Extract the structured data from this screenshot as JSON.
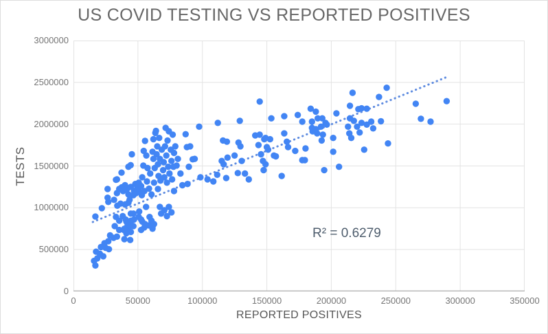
{
  "chart_data": {
    "type": "scatter",
    "title": "US COVID TESTING VS REPORTED POSITIVES",
    "xlabel": "REPORTED POSITIVES",
    "ylabel": "TESTS",
    "xlim": [
      0,
      350000
    ],
    "ylim": [
      0,
      3000000
    ],
    "x_ticks": [
      0,
      50000,
      100000,
      150000,
      200000,
      250000,
      300000,
      350000
    ],
    "y_ticks": [
      0,
      500000,
      1000000,
      1500000,
      2000000,
      2500000,
      3000000
    ],
    "grid": true,
    "legend_position": "none",
    "colors": {
      "point": "#4285f4",
      "trendline": "#5f8ce0",
      "gridline": "#e3e3e3",
      "axis_line": "#ababab",
      "tick_label": "#757575",
      "axis_title": "#555555",
      "title": "#666666",
      "r2_text": "#4e5d6d"
    },
    "point_radius": 4.7,
    "trendline": {
      "style": "dotted",
      "x1": 15000,
      "y1": 830000,
      "x2": 289500,
      "y2": 2563000,
      "r_squared_label": "R² = 0.6279",
      "label_position": {
        "x": 212000,
        "y": 690000
      }
    },
    "series": [
      {
        "name": "TESTS",
        "points": [
          [
            22000,
            995000
          ],
          [
            17000,
            895000
          ],
          [
            34000,
            1025000
          ],
          [
            36500,
            1050000
          ],
          [
            40000,
            1040000
          ],
          [
            42600,
            1060000
          ],
          [
            33000,
            890000
          ],
          [
            35500,
            845000
          ],
          [
            38200,
            900000
          ],
          [
            41000,
            835000
          ],
          [
            44500,
            930000
          ],
          [
            32000,
            780000
          ],
          [
            35500,
            735000
          ],
          [
            39000,
            735000
          ],
          [
            42600,
            750000
          ],
          [
            45300,
            790000
          ],
          [
            47000,
            860000
          ],
          [
            50600,
            890000
          ],
          [
            53300,
            835000
          ],
          [
            55000,
            765000
          ],
          [
            58600,
            790000
          ],
          [
            61300,
            750000
          ],
          [
            28400,
            670000
          ],
          [
            31100,
            640000
          ],
          [
            33700,
            655000
          ],
          [
            27000,
            600000
          ],
          [
            24000,
            575000
          ],
          [
            21300,
            530000
          ],
          [
            25000,
            520000
          ],
          [
            27500,
            505000
          ],
          [
            17500,
            475000
          ],
          [
            20500,
            450000
          ],
          [
            23100,
            420000
          ],
          [
            18500,
            395000
          ],
          [
            16000,
            365000
          ],
          [
            17000,
            310000
          ],
          [
            46500,
            930000
          ],
          [
            40500,
            860000
          ],
          [
            44500,
            845000
          ],
          [
            42000,
            790000
          ],
          [
            46500,
            780000
          ],
          [
            51000,
            955000
          ],
          [
            56300,
            1010000
          ],
          [
            52500,
            860000
          ],
          [
            55500,
            805000
          ],
          [
            59000,
            890000
          ],
          [
            60500,
            845000
          ],
          [
            62500,
            805000
          ],
          [
            61500,
            780000
          ],
          [
            67000,
            1010000
          ],
          [
            68000,
            930000
          ],
          [
            70500,
            970000
          ],
          [
            72500,
            900000
          ],
          [
            74000,
            1010000
          ],
          [
            76000,
            945000
          ],
          [
            39500,
            750000
          ],
          [
            41000,
            695000
          ],
          [
            44500,
            710000
          ],
          [
            39500,
            625000
          ],
          [
            44000,
            615000
          ],
          [
            52500,
            735000
          ],
          [
            26500,
            1225000
          ],
          [
            26500,
            1120000
          ],
          [
            27000,
            1070000
          ],
          [
            31500,
            1095000
          ],
          [
            33000,
            1335000
          ],
          [
            33700,
            1175000
          ],
          [
            35500,
            1225000
          ],
          [
            37500,
            1245000
          ],
          [
            38500,
            1200000
          ],
          [
            40000,
            1270000
          ],
          [
            41500,
            1225000
          ],
          [
            42600,
            1160000
          ],
          [
            43500,
            1095000
          ],
          [
            44500,
            1250000
          ],
          [
            33700,
            1340000
          ],
          [
            37300,
            1420000
          ],
          [
            42600,
            1490000
          ],
          [
            44400,
            1510000
          ],
          [
            45300,
            1640000
          ],
          [
            46500,
            1150000
          ],
          [
            47000,
            1200000
          ],
          [
            48000,
            1285000
          ],
          [
            48500,
            1175000
          ],
          [
            49500,
            1235000
          ],
          [
            50600,
            1300000
          ],
          [
            51500,
            1190000
          ],
          [
            52500,
            1260000
          ],
          [
            53000,
            1150000
          ],
          [
            53300,
            1365000
          ],
          [
            54200,
            1505000
          ],
          [
            54500,
            1680000
          ],
          [
            55000,
            1200000
          ],
          [
            55500,
            1800000
          ],
          [
            56500,
            1625000
          ],
          [
            57000,
            1315000
          ],
          [
            57500,
            1475000
          ],
          [
            58600,
            1230000
          ],
          [
            59500,
            1410000
          ],
          [
            60500,
            1160000
          ],
          [
            61300,
            1670000
          ],
          [
            62000,
            1820000
          ],
          [
            62000,
            1585000
          ],
          [
            62500,
            1300000
          ],
          [
            63000,
            1475000
          ],
          [
            63500,
            1895000
          ],
          [
            64000,
            1920000
          ],
          [
            64500,
            1640000
          ],
          [
            65000,
            1735000
          ],
          [
            65500,
            1225000
          ],
          [
            65500,
            1520000
          ],
          [
            66000,
            1380000
          ],
          [
            66500,
            1835000
          ],
          [
            67000,
            1585000
          ],
          [
            67500,
            1325000
          ],
          [
            68500,
            1695000
          ],
          [
            69500,
            1450000
          ],
          [
            70000,
            1545000
          ],
          [
            70500,
            1365000
          ],
          [
            71000,
            1735000
          ],
          [
            71500,
            1955000
          ],
          [
            72000,
            1625000
          ],
          [
            72500,
            1300000
          ],
          [
            73000,
            1805000
          ],
          [
            73500,
            1490000
          ],
          [
            74000,
            1915000
          ],
          [
            74500,
            1410000
          ],
          [
            75500,
            1695000
          ],
          [
            76000,
            1560000
          ],
          [
            76500,
            1340000
          ],
          [
            77000,
            1875000
          ],
          [
            78000,
            1655000
          ],
          [
            78000,
            1200000
          ],
          [
            79000,
            1735000
          ],
          [
            80000,
            1505000
          ],
          [
            81000,
            1585000
          ],
          [
            87000,
            1880000
          ],
          [
            88000,
            1725000
          ],
          [
            89500,
            1490000
          ],
          [
            90500,
            1735000
          ],
          [
            92500,
            1580000
          ],
          [
            94000,
            1585000
          ],
          [
            97500,
            1970000
          ],
          [
            98500,
            1365000
          ],
          [
            104000,
            1340000
          ],
          [
            108500,
            1315000
          ],
          [
            115000,
            1560000
          ],
          [
            116500,
            1520000
          ],
          [
            112000,
            2015000
          ],
          [
            129000,
            2040000
          ],
          [
            144500,
            2270000
          ],
          [
            153500,
            2070000
          ],
          [
            163500,
            2095000
          ],
          [
            174000,
            2110000
          ],
          [
            177500,
            2030000
          ],
          [
            184000,
            2185000
          ],
          [
            185000,
            2030000
          ],
          [
            188000,
            2150000
          ],
          [
            189500,
            2070000
          ],
          [
            193000,
            2070000
          ],
          [
            195500,
            2015000
          ],
          [
            196500,
            1995000
          ],
          [
            204000,
            2130000
          ],
          [
            214500,
            2220000
          ],
          [
            216500,
            2375000
          ],
          [
            214500,
            2070000
          ],
          [
            217500,
            2040000
          ],
          [
            221000,
            2180000
          ],
          [
            223500,
            2190000
          ],
          [
            223500,
            2015000
          ],
          [
            227500,
            2185000
          ],
          [
            231000,
            2030000
          ],
          [
            227500,
            1995000
          ],
          [
            243000,
            2435000
          ],
          [
            237000,
            2325000
          ],
          [
            238500,
            2035000
          ],
          [
            265500,
            2245000
          ],
          [
            269500,
            2065000
          ],
          [
            277000,
            2030000
          ],
          [
            289500,
            2275000
          ],
          [
            119000,
            1790000
          ],
          [
            119500,
            1600000
          ],
          [
            118500,
            1355000
          ],
          [
            125000,
            1625000
          ],
          [
            128000,
            1780000
          ],
          [
            129500,
            1735000
          ],
          [
            127500,
            1415000
          ],
          [
            130500,
            1560000
          ],
          [
            133000,
            1410000
          ],
          [
            136000,
            1340000
          ],
          [
            141000,
            1865000
          ],
          [
            143500,
            1750000
          ],
          [
            144500,
            1875000
          ],
          [
            145500,
            1640000
          ],
          [
            148000,
            1820000
          ],
          [
            149000,
            1835000
          ],
          [
            150000,
            1725000
          ],
          [
            151000,
            1695000
          ],
          [
            149000,
            1520000
          ],
          [
            147000,
            1560000
          ],
          [
            147500,
            1450000
          ],
          [
            152500,
            1820000
          ],
          [
            155500,
            1625000
          ],
          [
            157000,
            1615000
          ],
          [
            163500,
            1890000
          ],
          [
            161500,
            1380000
          ],
          [
            165500,
            1790000
          ],
          [
            166500,
            1725000
          ],
          [
            172000,
            1680000
          ],
          [
            177500,
            1570000
          ],
          [
            179500,
            1570000
          ],
          [
            180000,
            1710000
          ],
          [
            185000,
            1955000
          ],
          [
            185500,
            1915000
          ],
          [
            188000,
            1940000
          ],
          [
            189000,
            1890000
          ],
          [
            192000,
            1970000
          ],
          [
            193500,
            1875000
          ],
          [
            192500,
            1805000
          ],
          [
            194500,
            1450000
          ],
          [
            201500,
            1835000
          ],
          [
            201500,
            1670000
          ],
          [
            206000,
            1490000
          ],
          [
            213000,
            1970000
          ],
          [
            214000,
            1890000
          ],
          [
            215500,
            1835000
          ],
          [
            220000,
            1970000
          ],
          [
            222000,
            1900000
          ],
          [
            225500,
            1695000
          ],
          [
            232500,
            1950000
          ],
          [
            244000,
            1770000
          ],
          [
            116000,
            1805000
          ],
          [
            77500,
            1490000
          ],
          [
            83000,
            1410000
          ],
          [
            88500,
            1285000
          ],
          [
            111500,
            1395000
          ],
          [
            84500,
            1270000
          ]
        ]
      }
    ]
  }
}
